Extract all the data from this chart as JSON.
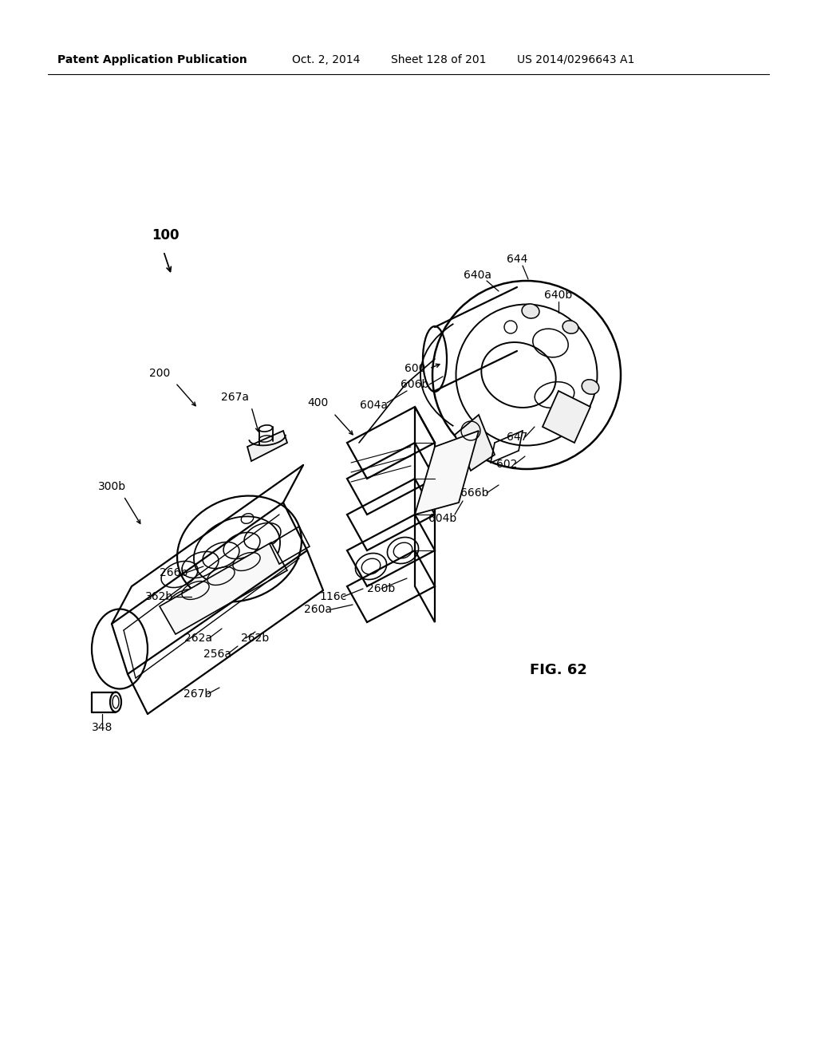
{
  "bg_color": "#ffffff",
  "header_text": "Patent Application Publication",
  "header_date": "Oct. 2, 2014",
  "header_sheet": "Sheet 128 of 201",
  "header_patent": "US 2014/0296643 A1",
  "fig_label": "FIG. 62",
  "lw_main": 1.6,
  "lw_thin": 1.0,
  "lw_leader": 0.9,
  "font_label": 10,
  "font_header": 10,
  "font_fig": 13
}
